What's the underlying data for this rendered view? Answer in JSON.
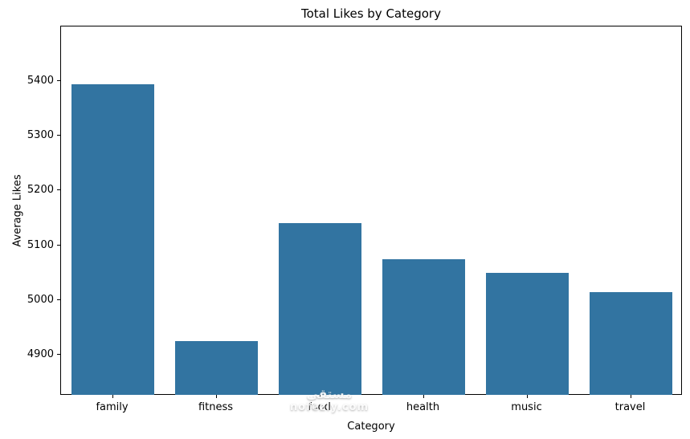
{
  "chart_data": {
    "type": "bar",
    "title": "Total Likes by Category",
    "xlabel": "Category",
    "ylabel": "Average Likes",
    "categories": [
      "family",
      "fitness",
      "food",
      "health",
      "music",
      "travel"
    ],
    "values": [
      5395,
      4925,
      5140,
      5075,
      5050,
      5015
    ],
    "ylim": [
      4825,
      5500
    ],
    "yticks": [
      4900,
      5000,
      5100,
      5200,
      5300,
      5400
    ],
    "bar_color": "#3274a1",
    "grid": false,
    "legend": "none"
  },
  "watermark": {
    "line1": "مستقى",
    "line2": "nofezly.com"
  }
}
